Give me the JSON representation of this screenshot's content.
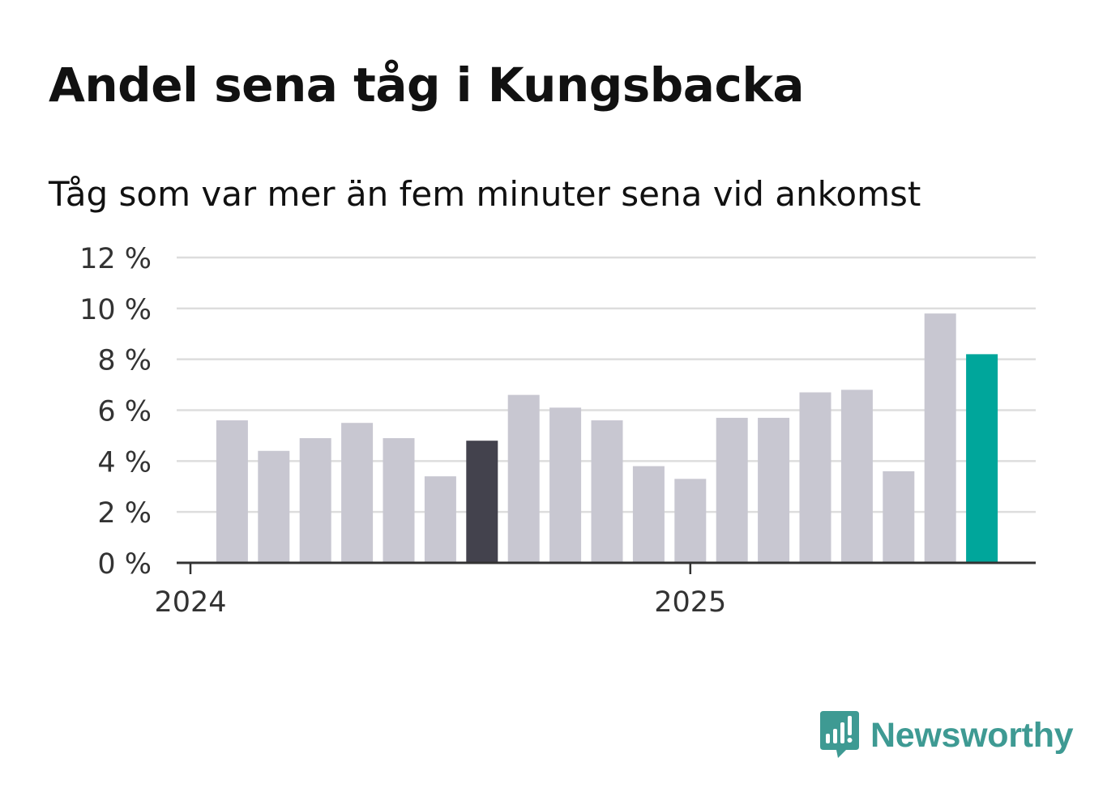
{
  "header": {
    "title": "Andel sena tåg i Kungsbacka",
    "subtitle": "Tåg som var mer än fem minuter sena vid ankomst"
  },
  "brand": {
    "name": "Newsworthy",
    "icon": "newsworthy-logo-icon",
    "color": "#3e9a93"
  },
  "colors": {
    "bar_default": "#c8c7d1",
    "bar_highlight": "#43424d",
    "bar_latest": "#00a69b",
    "grid": "#dddddd",
    "axis": "#333333",
    "tick_text": "#333333"
  },
  "chart_data": {
    "type": "bar",
    "title": "Andel sena tåg i Kungsbacka",
    "subtitle": "Tåg som var mer än fem minuter sena vid ankomst",
    "xlabel": "",
    "ylabel": "",
    "ylim": [
      0,
      12
    ],
    "y_ticks": [
      0,
      2,
      4,
      6,
      8,
      10,
      12
    ],
    "y_tick_labels": [
      "0 %",
      "2 %",
      "4 %",
      "6 %",
      "8 %",
      "10 %",
      "12 %"
    ],
    "x_tick_labels": [
      "2024",
      "2025"
    ],
    "grid": true,
    "legend": "none",
    "bars": [
      {
        "x": "2024-02",
        "value": 5.6,
        "style": "default"
      },
      {
        "x": "2024-03",
        "value": 4.4,
        "style": "default"
      },
      {
        "x": "2024-04",
        "value": 4.9,
        "style": "default"
      },
      {
        "x": "2024-05",
        "value": 5.5,
        "style": "default"
      },
      {
        "x": "2024-06",
        "value": 4.9,
        "style": "default"
      },
      {
        "x": "2024-07",
        "value": 3.4,
        "style": "default"
      },
      {
        "x": "2024-08",
        "value": 4.8,
        "style": "highlight"
      },
      {
        "x": "2024-09",
        "value": 6.6,
        "style": "default"
      },
      {
        "x": "2024-10",
        "value": 6.1,
        "style": "default"
      },
      {
        "x": "2024-11",
        "value": 5.6,
        "style": "default"
      },
      {
        "x": "2024-12",
        "value": 3.8,
        "style": "default"
      },
      {
        "x": "2025-01",
        "value": 3.3,
        "style": "default"
      },
      {
        "x": "2025-02",
        "value": 5.7,
        "style": "default"
      },
      {
        "x": "2025-03",
        "value": 5.7,
        "style": "default"
      },
      {
        "x": "2025-04",
        "value": 6.7,
        "style": "default"
      },
      {
        "x": "2025-05",
        "value": 6.8,
        "style": "default"
      },
      {
        "x": "2025-06",
        "value": 3.6,
        "style": "default"
      },
      {
        "x": "2025-07",
        "value": 9.8,
        "style": "default"
      },
      {
        "x": "2025-08",
        "value": 8.2,
        "style": "latest"
      }
    ]
  }
}
